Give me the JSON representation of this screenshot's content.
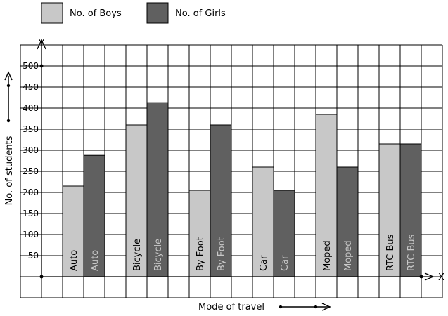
{
  "chart_data": {
    "type": "bar",
    "categories": [
      "Auto",
      "Bicycle",
      "By Foot",
      "Car",
      "Moped",
      "RTC Bus"
    ],
    "series": [
      {
        "name": "No. of Boys",
        "values": [
          215,
          360,
          205,
          260,
          385,
          315
        ],
        "color": "#c8c8c8",
        "label_color": "#000000"
      },
      {
        "name": "No. of Girls",
        "values": [
          288,
          413,
          360,
          205,
          260,
          315
        ],
        "color": "#606060",
        "label_color": "#c8c8c8"
      }
    ],
    "xlabel": "Mode of travel",
    "ylabel": "No. of students",
    "x_axis_letter": "X",
    "y_axis_letter": "Y",
    "yticks": [
      50,
      100,
      150,
      200,
      250,
      300,
      350,
      400,
      450,
      500
    ],
    "ylim": [
      0,
      550
    ],
    "grid": true,
    "legend_position": "top-left"
  }
}
